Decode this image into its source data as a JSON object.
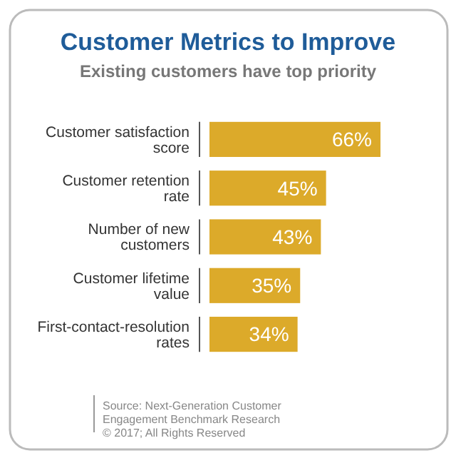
{
  "chart_data": {
    "type": "bar",
    "orientation": "horizontal",
    "title": "Customer Metrics to Improve",
    "subtitle": "Existing customers have top priority",
    "categories": [
      "Customer satisfaction score",
      "Customer retention rate",
      "Number of new customers",
      "Customer lifetime value",
      "First-contact-resolution rates"
    ],
    "values": [
      66,
      45,
      43,
      35,
      34
    ],
    "color": "#dcaa2a",
    "value_labels": [
      "66%",
      "45%",
      "43%",
      "35%",
      "34%"
    ],
    "annotations": [
      "Source: Next-Generation Customer Engagement Benchmark Research",
      "© 2017; All Rights Reserved"
    ]
  }
}
